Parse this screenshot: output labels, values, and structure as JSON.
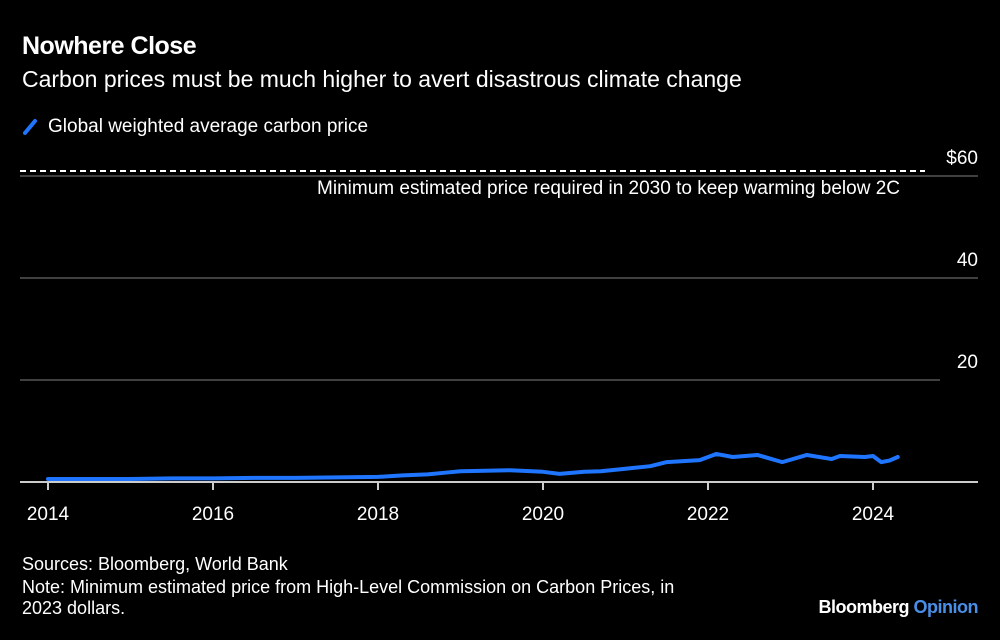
{
  "chart_data": {
    "type": "line",
    "title": "Nowhere Close",
    "subtitle": "Carbon prices must be much higher to avert disastrous climate change",
    "xlabel": "",
    "ylabel": "",
    "xlim": [
      2014,
      2025
    ],
    "ylim": [
      0,
      60
    ],
    "x_ticks": [
      "2014",
      "2016",
      "2018",
      "2020",
      "2022",
      "2024"
    ],
    "y_ticks": [
      {
        "value": 20,
        "label": "20"
      },
      {
        "value": 40,
        "label": "40"
      },
      {
        "value": 60,
        "label": "$60"
      }
    ],
    "grid": true,
    "legend_placement": "top-left",
    "series": [
      {
        "name": "Global weighted average carbon price",
        "color": "#1F75FE",
        "x": [
          2014,
          2014.5,
          2015,
          2015.5,
          2016,
          2016.5,
          2017,
          2017.5,
          2018,
          2018.3,
          2018.6,
          2018.8,
          2019,
          2019.3,
          2019.6,
          2020,
          2020.2,
          2020.5,
          2020.7,
          2021,
          2021.3,
          2021.5,
          2021.7,
          2021.9,
          2022.1,
          2022.3,
          2022.6,
          2022.75,
          2022.9,
          2023.2,
          2023.5,
          2023.6,
          2023.9,
          2024,
          2024.1,
          2024.2,
          2024.3
        ],
        "y": [
          0.6,
          0.6,
          0.6,
          0.7,
          0.7,
          0.8,
          0.8,
          0.9,
          1.0,
          1.3,
          1.5,
          1.8,
          2.1,
          2.2,
          2.3,
          2.0,
          1.6,
          2.0,
          2.1,
          2.6,
          3.1,
          3.9,
          4.1,
          4.3,
          5.5,
          4.9,
          5.3,
          4.6,
          3.9,
          5.3,
          4.5,
          5.1,
          4.9,
          5.1,
          3.9,
          4.2,
          4.9
        ]
      }
    ],
    "annotations": [
      {
        "type": "hline",
        "value": 60,
        "style": "dashed",
        "label": "Minimum estimated price required in 2030 to keep warming below 2C"
      }
    ]
  },
  "footer": {
    "sources": "Sources: Bloomberg, World Bank",
    "note_line1": "Note: Minimum estimated price from High-Level Commission on Carbon Prices, in",
    "note_line2": "2023 dollars.",
    "brand_a": "Bloomberg",
    "brand_b": "Opinion"
  },
  "colors": {
    "line": "#1F75FE",
    "grid": "#555555",
    "brand_accent": "#4A8FE7"
  }
}
